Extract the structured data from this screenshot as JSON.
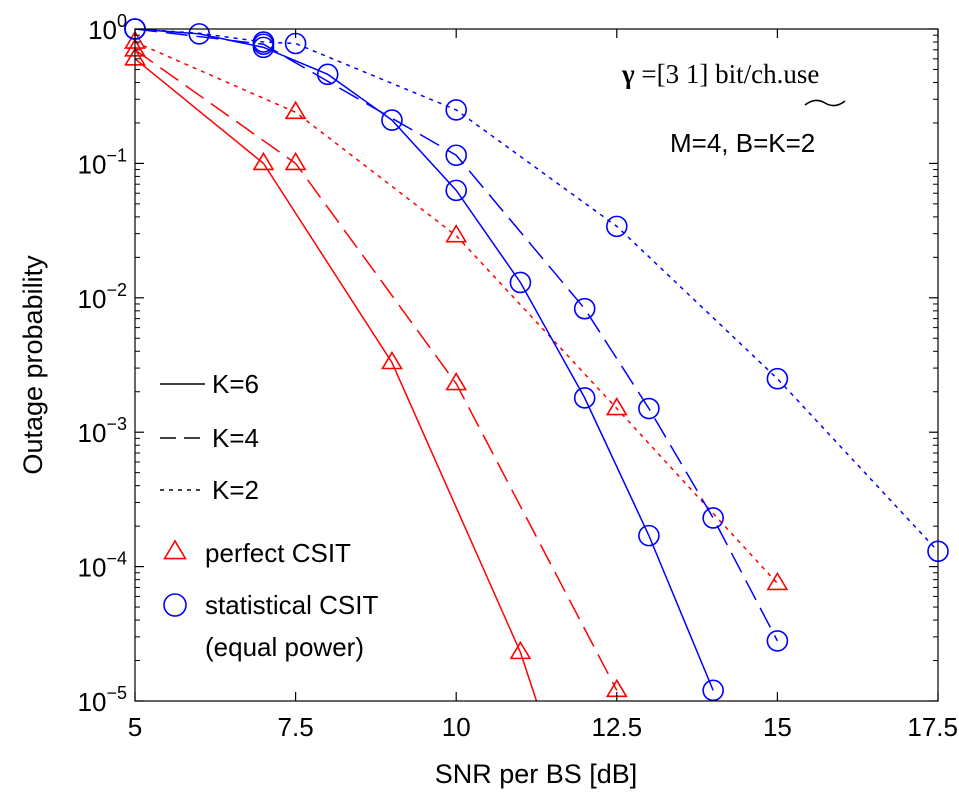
{
  "chart_data": {
    "type": "line",
    "title": "",
    "xlabel": "SNR per BS [dB]",
    "ylabel": "Outage probability",
    "xlim": [
      5,
      17.5
    ],
    "ylim": [
      1e-05,
      1
    ],
    "yscale": "log",
    "grid": false,
    "x_ticks": [
      {
        "value": 5,
        "label": "5"
      },
      {
        "value": 7.5,
        "label": "7.5"
      },
      {
        "value": 10,
        "label": "10"
      },
      {
        "value": 12.5,
        "label": "12.5"
      },
      {
        "value": 15,
        "label": "15"
      },
      {
        "value": 17.5,
        "label": "17.5"
      }
    ],
    "y_ticks": [
      {
        "value": 1,
        "base": "10",
        "exp": "0"
      },
      {
        "value": 0.1,
        "base": "10",
        "exp": "−1"
      },
      {
        "value": 0.01,
        "base": "10",
        "exp": "−2"
      },
      {
        "value": 0.001,
        "base": "10",
        "exp": "−3"
      },
      {
        "value": 0.0001,
        "base": "10",
        "exp": "−4"
      },
      {
        "value": 1e-05,
        "base": "10",
        "exp": "−5"
      }
    ],
    "annotations": {
      "gamma_symbol": "γ",
      "gamma_text": " =[3 1] bit/ch.use",
      "config_text": "M=4, B=K=2"
    },
    "legend": {
      "placement": "bottom-left",
      "line_styles": [
        {
          "label": "K=6",
          "dash": "solid"
        },
        {
          "label": "K=4",
          "dash": "dashed"
        },
        {
          "label": "K=2",
          "dash": "dotted"
        }
      ],
      "markers": [
        {
          "label": "perfect CSIT",
          "marker": "triangle",
          "color": "#ff0000"
        },
        {
          "label": "statistical CSIT",
          "label2": "(equal power)",
          "marker": "circle",
          "color": "#0000ff"
        }
      ]
    },
    "series": [
      {
        "csit": "perfect",
        "k": "K=6",
        "color": "#ff0000",
        "dash": "solid",
        "marker": "triangle",
        "x": [
          5,
          7,
          9,
          11,
          11.25
        ],
        "y": [
          0.6,
          0.1,
          0.0033,
          2.3e-05,
          1e-05
        ],
        "marked": [
          true,
          true,
          true,
          true,
          false
        ]
      },
      {
        "csit": "perfect",
        "k": "K=4",
        "color": "#ff0000",
        "dash": "dashed",
        "marker": "triangle",
        "x": [
          5,
          7.5,
          10,
          12.5
        ],
        "y": [
          0.7,
          0.1,
          0.0023,
          1.2e-05
        ],
        "marked": [
          true,
          true,
          true,
          true
        ]
      },
      {
        "csit": "perfect",
        "k": "K=2",
        "color": "#ff0000",
        "dash": "dotted",
        "marker": "triangle",
        "x": [
          5,
          7.5,
          10,
          12.5,
          15
        ],
        "y": [
          0.8,
          0.24,
          0.029,
          0.0015,
          7.5e-05
        ],
        "marked": [
          true,
          true,
          true,
          true,
          true
        ]
      },
      {
        "csit": "statistical",
        "k": "K=6",
        "color": "#0000ff",
        "dash": "solid",
        "marker": "circle",
        "x": [
          5,
          6,
          7,
          8,
          9,
          10,
          11,
          12,
          13,
          14
        ],
        "y": [
          1,
          0.92,
          0.73,
          0.46,
          0.21,
          0.063,
          0.013,
          0.0018,
          0.00017,
          1.2e-05
        ],
        "marked": [
          true,
          true,
          true,
          true,
          true,
          true,
          true,
          true,
          true,
          true
        ]
      },
      {
        "csit": "statistical",
        "k": "K=4",
        "color": "#0000ff",
        "dash": "dashed",
        "marker": "circle",
        "x": [
          5,
          7,
          10,
          12,
          13,
          14,
          15
        ],
        "y": [
          1,
          0.77,
          0.115,
          0.0083,
          0.0015,
          0.00023,
          2.8e-05
        ],
        "marked": [
          true,
          true,
          true,
          true,
          true,
          true,
          true
        ]
      },
      {
        "csit": "statistical",
        "k": "K=2",
        "color": "#0000ff",
        "dash": "dotted",
        "marker": "circle",
        "x": [
          5,
          6,
          7,
          7.5,
          10,
          12.5,
          15,
          17.5
        ],
        "y": [
          1,
          0.93,
          0.8,
          0.78,
          0.25,
          0.034,
          0.0025,
          0.00013
        ],
        "marked": [
          true,
          false,
          true,
          true,
          true,
          true,
          true,
          true
        ]
      }
    ]
  }
}
